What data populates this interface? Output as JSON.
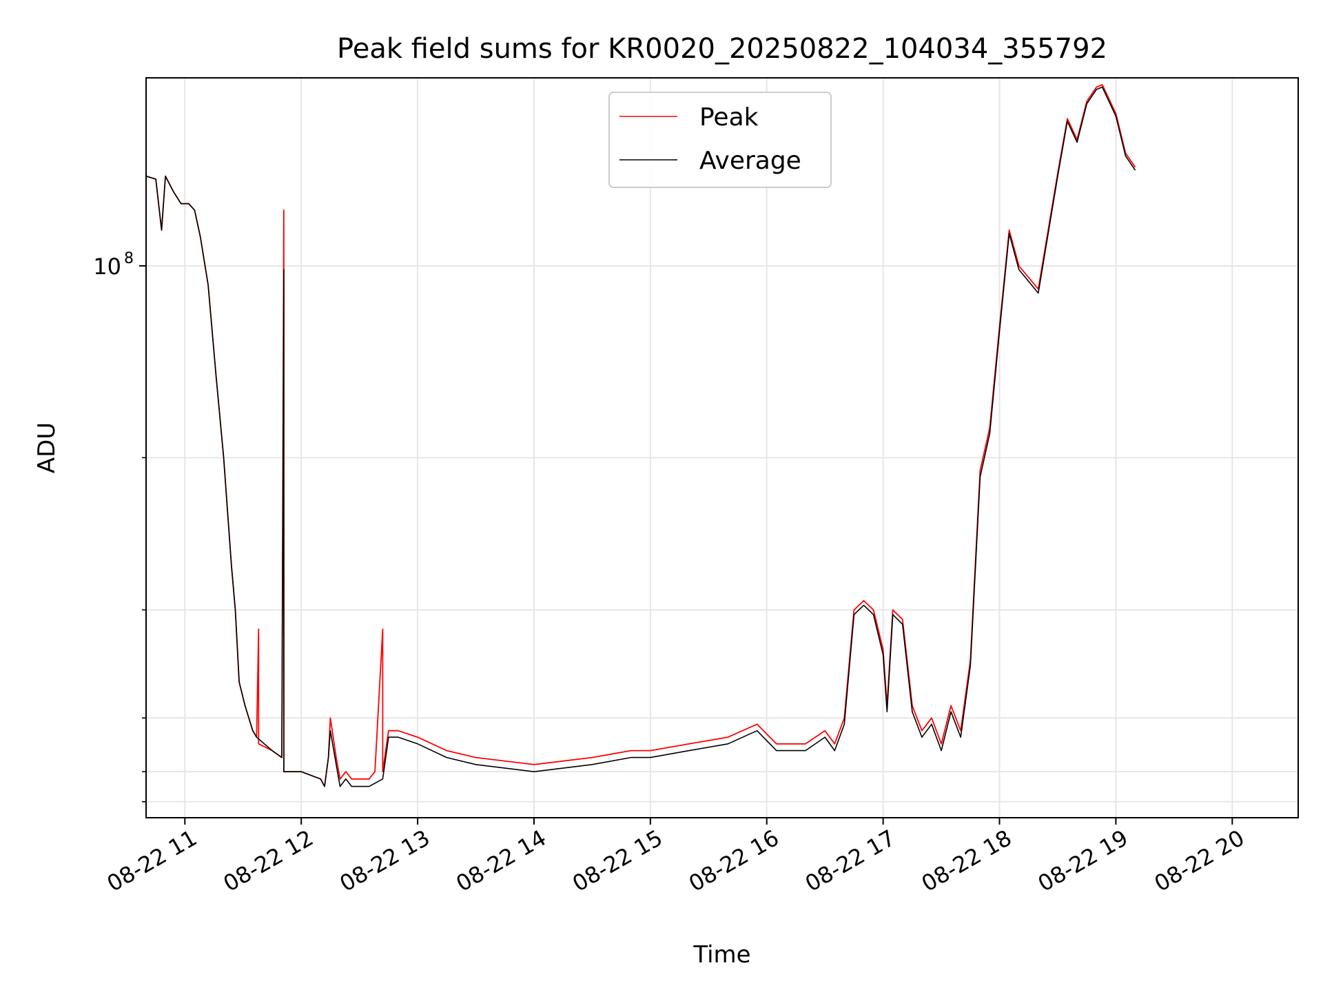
{
  "chart_data": {
    "type": "line",
    "title": "Peak field sums for KR0020_20250822_104034_355792",
    "xlabel": "Time",
    "ylabel": "ADU",
    "yscale": "log",
    "grid": true,
    "legend_position": "top-center",
    "xlim": [
      "2025-08-22 10:40",
      "2025-08-22 20:34"
    ],
    "ylim": [
      23000000,
      165000000
    ],
    "x_ticks": [
      {
        "value": "2025-08-22 11:00",
        "label": "08-22 11"
      },
      {
        "value": "2025-08-22 12:00",
        "label": "08-22 12"
      },
      {
        "value": "2025-08-22 13:00",
        "label": "08-22 13"
      },
      {
        "value": "2025-08-22 14:00",
        "label": "08-22 14"
      },
      {
        "value": "2025-08-22 15:00",
        "label": "08-22 15"
      },
      {
        "value": "2025-08-22 16:00",
        "label": "08-22 16"
      },
      {
        "value": "2025-08-22 17:00",
        "label": "08-22 17"
      },
      {
        "value": "2025-08-22 18:00",
        "label": "08-22 18"
      },
      {
        "value": "2025-08-22 19:00",
        "label": "08-22 19"
      },
      {
        "value": "2025-08-22 20:00",
        "label": "08-22 20"
      }
    ],
    "y_major_ticks": [
      {
        "value": 100000000,
        "label": "10",
        "exponent": "8"
      }
    ],
    "y_minor_ticks": [
      24000000,
      26000000,
      30000000,
      40000000,
      60000000
    ],
    "series": [
      {
        "name": "Peak",
        "color": "#ff0000",
        "points": [
          [
            "2025-08-22 10:40",
            127000000
          ],
          [
            "2025-08-22 10:45",
            126000000
          ],
          [
            "2025-08-22 10:48",
            110000000
          ],
          [
            "2025-08-22 10:50",
            127000000
          ],
          [
            "2025-08-22 10:54",
            122000000
          ],
          [
            "2025-08-22 10:58",
            118000000
          ],
          [
            "2025-08-22 11:02",
            118000000
          ],
          [
            "2025-08-22 11:05",
            116000000
          ],
          [
            "2025-08-22 11:08",
            108000000
          ],
          [
            "2025-08-22 11:12",
            95000000
          ],
          [
            "2025-08-22 11:16",
            75000000
          ],
          [
            "2025-08-22 11:20",
            60000000
          ],
          [
            "2025-08-22 11:24",
            45000000
          ],
          [
            "2025-08-22 11:26",
            40000000
          ],
          [
            "2025-08-22 11:28",
            33000000
          ],
          [
            "2025-08-22 11:31",
            31000000
          ],
          [
            "2025-08-22 11:35",
            29000000
          ],
          [
            "2025-08-22 11:37",
            28500000
          ],
          [
            "2025-08-22 11:38",
            38000000
          ],
          [
            "2025-08-22 11:38",
            28000000
          ],
          [
            "2025-08-22 11:45",
            27500000
          ],
          [
            "2025-08-22 11:50",
            27000000
          ],
          [
            "2025-08-22 11:51",
            116000000
          ],
          [
            "2025-08-22 11:51",
            26000000
          ],
          [
            "2025-08-22 12:00",
            26000000
          ],
          [
            "2025-08-22 12:10",
            25500000
          ],
          [
            "2025-08-22 12:12",
            25000000
          ],
          [
            "2025-08-22 12:14",
            27000000
          ],
          [
            "2025-08-22 12:15",
            30000000
          ],
          [
            "2025-08-22 12:18",
            27000000
          ],
          [
            "2025-08-22 12:20",
            25500000
          ],
          [
            "2025-08-22 12:23",
            26000000
          ],
          [
            "2025-08-22 12:26",
            25500000
          ],
          [
            "2025-08-22 12:35",
            25500000
          ],
          [
            "2025-08-22 12:38",
            26000000
          ],
          [
            "2025-08-22 12:42",
            38000000
          ],
          [
            "2025-08-22 12:42",
            26000000
          ],
          [
            "2025-08-22 12:45",
            29000000
          ],
          [
            "2025-08-22 12:50",
            29000000
          ],
          [
            "2025-08-22 13:00",
            28500000
          ],
          [
            "2025-08-22 13:15",
            27500000
          ],
          [
            "2025-08-22 13:30",
            27000000
          ],
          [
            "2025-08-22 14:00",
            26500000
          ],
          [
            "2025-08-22 14:30",
            27000000
          ],
          [
            "2025-08-22 14:50",
            27500000
          ],
          [
            "2025-08-22 15:00",
            27500000
          ],
          [
            "2025-08-22 15:20",
            28000000
          ],
          [
            "2025-08-22 15:40",
            28500000
          ],
          [
            "2025-08-22 15:55",
            29500000
          ],
          [
            "2025-08-22 16:05",
            28000000
          ],
          [
            "2025-08-22 16:20",
            28000000
          ],
          [
            "2025-08-22 16:30",
            29000000
          ],
          [
            "2025-08-22 16:35",
            28000000
          ],
          [
            "2025-08-22 16:40",
            30000000
          ],
          [
            "2025-08-22 16:45",
            40000000
          ],
          [
            "2025-08-22 16:50",
            41000000
          ],
          [
            "2025-08-22 16:55",
            40000000
          ],
          [
            "2025-08-22 17:00",
            36000000
          ],
          [
            "2025-08-22 17:02",
            31000000
          ],
          [
            "2025-08-22 17:05",
            40000000
          ],
          [
            "2025-08-22 17:10",
            39000000
          ],
          [
            "2025-08-22 17:15",
            31000000
          ],
          [
            "2025-08-22 17:20",
            29000000
          ],
          [
            "2025-08-22 17:25",
            30000000
          ],
          [
            "2025-08-22 17:30",
            28000000
          ],
          [
            "2025-08-22 17:35",
            31000000
          ],
          [
            "2025-08-22 17:40",
            29000000
          ],
          [
            "2025-08-22 17:45",
            35000000
          ],
          [
            "2025-08-22 17:50",
            58000000
          ],
          [
            "2025-08-22 17:55",
            65000000
          ],
          [
            "2025-08-22 18:00",
            85000000
          ],
          [
            "2025-08-22 18:05",
            110000000
          ],
          [
            "2025-08-22 18:10",
            100000000
          ],
          [
            "2025-08-22 18:20",
            94000000
          ],
          [
            "2025-08-22 18:30",
            128000000
          ],
          [
            "2025-08-22 18:35",
            148000000
          ],
          [
            "2025-08-22 18:40",
            140000000
          ],
          [
            "2025-08-22 18:45",
            155000000
          ],
          [
            "2025-08-22 18:50",
            161000000
          ],
          [
            "2025-08-22 18:53",
            162000000
          ],
          [
            "2025-08-22 19:00",
            150000000
          ],
          [
            "2025-08-22 19:05",
            135000000
          ],
          [
            "2025-08-22 19:10",
            130000000
          ]
        ]
      },
      {
        "name": "Average",
        "color": "#000000",
        "points": [
          [
            "2025-08-22 10:40",
            127000000
          ],
          [
            "2025-08-22 10:45",
            126000000
          ],
          [
            "2025-08-22 10:48",
            110000000
          ],
          [
            "2025-08-22 10:50",
            127000000
          ],
          [
            "2025-08-22 10:54",
            122000000
          ],
          [
            "2025-08-22 10:58",
            118000000
          ],
          [
            "2025-08-22 11:02",
            118000000
          ],
          [
            "2025-08-22 11:05",
            116000000
          ],
          [
            "2025-08-22 11:08",
            108000000
          ],
          [
            "2025-08-22 11:12",
            95000000
          ],
          [
            "2025-08-22 11:16",
            75000000
          ],
          [
            "2025-08-22 11:20",
            60000000
          ],
          [
            "2025-08-22 11:24",
            45000000
          ],
          [
            "2025-08-22 11:26",
            40000000
          ],
          [
            "2025-08-22 11:28",
            33000000
          ],
          [
            "2025-08-22 11:31",
            31000000
          ],
          [
            "2025-08-22 11:35",
            29000000
          ],
          [
            "2025-08-22 11:37",
            28500000
          ],
          [
            "2025-08-22 11:45",
            27500000
          ],
          [
            "2025-08-22 11:50",
            27000000
          ],
          [
            "2025-08-22 11:51",
            99000000
          ],
          [
            "2025-08-22 11:51",
            26000000
          ],
          [
            "2025-08-22 12:00",
            26000000
          ],
          [
            "2025-08-22 12:10",
            25500000
          ],
          [
            "2025-08-22 12:12",
            25000000
          ],
          [
            "2025-08-22 12:14",
            27000000
          ],
          [
            "2025-08-22 12:15",
            29000000
          ],
          [
            "2025-08-22 12:18",
            26500000
          ],
          [
            "2025-08-22 12:20",
            25000000
          ],
          [
            "2025-08-22 12:23",
            25500000
          ],
          [
            "2025-08-22 12:26",
            25000000
          ],
          [
            "2025-08-22 12:35",
            25000000
          ],
          [
            "2025-08-22 12:42",
            25500000
          ],
          [
            "2025-08-22 12:45",
            28500000
          ],
          [
            "2025-08-22 12:50",
            28500000
          ],
          [
            "2025-08-22 13:00",
            28000000
          ],
          [
            "2025-08-22 13:15",
            27000000
          ],
          [
            "2025-08-22 13:30",
            26500000
          ],
          [
            "2025-08-22 14:00",
            26000000
          ],
          [
            "2025-08-22 14:30",
            26500000
          ],
          [
            "2025-08-22 14:50",
            27000000
          ],
          [
            "2025-08-22 15:00",
            27000000
          ],
          [
            "2025-08-22 15:20",
            27500000
          ],
          [
            "2025-08-22 15:40",
            28000000
          ],
          [
            "2025-08-22 15:55",
            29000000
          ],
          [
            "2025-08-22 16:05",
            27500000
          ],
          [
            "2025-08-22 16:20",
            27500000
          ],
          [
            "2025-08-22 16:30",
            28500000
          ],
          [
            "2025-08-22 16:35",
            27500000
          ],
          [
            "2025-08-22 16:40",
            29500000
          ],
          [
            "2025-08-22 16:45",
            39500000
          ],
          [
            "2025-08-22 16:50",
            40500000
          ],
          [
            "2025-08-22 16:55",
            39500000
          ],
          [
            "2025-08-22 17:00",
            35500000
          ],
          [
            "2025-08-22 17:02",
            30500000
          ],
          [
            "2025-08-22 17:05",
            39500000
          ],
          [
            "2025-08-22 17:10",
            38500000
          ],
          [
            "2025-08-22 17:15",
            30500000
          ],
          [
            "2025-08-22 17:20",
            28500000
          ],
          [
            "2025-08-22 17:25",
            29500000
          ],
          [
            "2025-08-22 17:30",
            27500000
          ],
          [
            "2025-08-22 17:35",
            30500000
          ],
          [
            "2025-08-22 17:40",
            28500000
          ],
          [
            "2025-08-22 17:45",
            34500000
          ],
          [
            "2025-08-22 17:50",
            57000000
          ],
          [
            "2025-08-22 17:55",
            64000000
          ],
          [
            "2025-08-22 18:00",
            84000000
          ],
          [
            "2025-08-22 18:05",
            109000000
          ],
          [
            "2025-08-22 18:10",
            99000000
          ],
          [
            "2025-08-22 18:20",
            93000000
          ],
          [
            "2025-08-22 18:30",
            127000000
          ],
          [
            "2025-08-22 18:35",
            147000000
          ],
          [
            "2025-08-22 18:40",
            139000000
          ],
          [
            "2025-08-22 18:45",
            154000000
          ],
          [
            "2025-08-22 18:50",
            160000000
          ],
          [
            "2025-08-22 18:53",
            161000000
          ],
          [
            "2025-08-22 19:00",
            149000000
          ],
          [
            "2025-08-22 19:05",
            134000000
          ],
          [
            "2025-08-22 19:10",
            129000000
          ]
        ]
      }
    ]
  }
}
